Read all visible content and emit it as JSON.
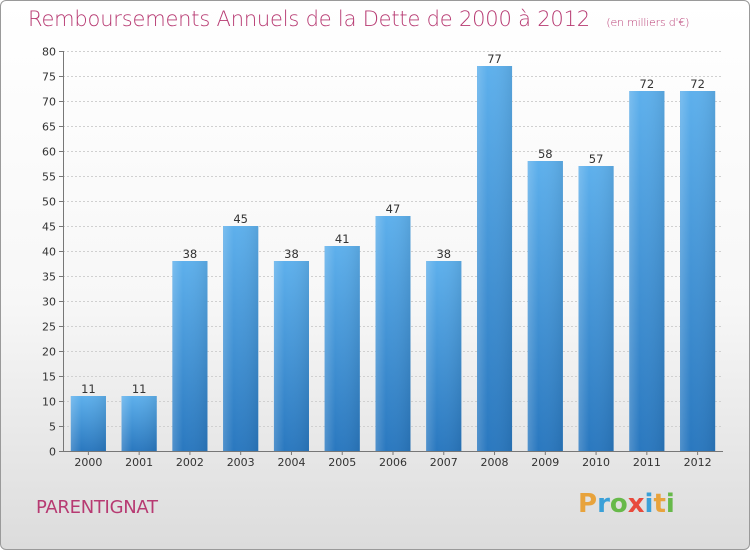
{
  "title": "Remboursements Annuels de la Dette de 2000 à 2012",
  "unit_note": "(en milliers d'€)",
  "city": "PARENTIGNAT",
  "logo": {
    "letters": [
      "P",
      "r",
      "o",
      "x",
      "i",
      "t",
      "i"
    ],
    "colors": [
      "#e8a33c",
      "#3aa0d8",
      "#67b94a",
      "#e84a3c",
      "#3aa0d8",
      "#e8a33c",
      "#67b94a"
    ]
  },
  "chart_data": {
    "type": "bar",
    "categories": [
      "2000",
      "2001",
      "2002",
      "2003",
      "2004",
      "2005",
      "2006",
      "2007",
      "2008",
      "2009",
      "2010",
      "2011",
      "2012"
    ],
    "values": [
      11,
      11,
      38,
      45,
      38,
      41,
      47,
      38,
      77,
      58,
      57,
      72,
      72
    ],
    "ylim": [
      0,
      80
    ],
    "yticks": [
      0,
      5,
      10,
      15,
      20,
      25,
      30,
      35,
      40,
      45,
      50,
      55,
      60,
      65,
      70,
      75,
      80
    ],
    "grid": true,
    "bar_color": "#3a8fd6"
  }
}
